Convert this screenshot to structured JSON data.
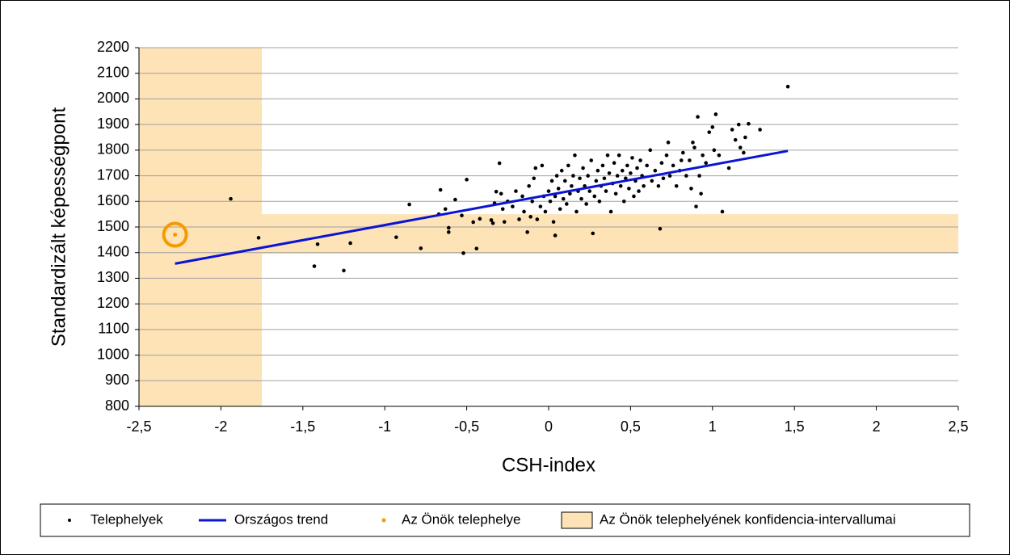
{
  "chart_data": {
    "type": "scatter",
    "xlabel": "CSH-index",
    "ylabel": "Standardizált képességpont",
    "xlim": [
      -2.5,
      2.5
    ],
    "xticks": [
      {
        "value": -2.5,
        "label": "-2,5"
      },
      -2,
      {
        "value": -1.5,
        "label": "-1,5"
      },
      -1,
      {
        "value": -0.5,
        "label": "-0,5"
      },
      0,
      {
        "value": 0.5,
        "label": "0,5"
      },
      1,
      {
        "value": 1.5,
        "label": "1,5"
      },
      2,
      {
        "value": 2.5,
        "label": "2,5"
      }
    ],
    "ylim": [
      800,
      2200
    ],
    "yticks": [
      800,
      900,
      1000,
      1100,
      1200,
      1300,
      1400,
      1500,
      1600,
      1700,
      1800,
      1900,
      2000,
      2100,
      2200
    ],
    "grid": true,
    "ci": {
      "name": "Az Önök telephelyének konfidencia-intervallumai",
      "color": "#fde3b6",
      "x": [
        -2.5,
        -1.75
      ],
      "y": [
        1395,
        1550
      ]
    },
    "series": [
      {
        "name": "Telephelyek",
        "type": "scatter",
        "color": "#000000",
        "x": [
          -1.94,
          -1.77,
          -1.43,
          -1.41,
          -1.25,
          -1.21,
          -0.93,
          -0.85,
          -0.78,
          -0.67,
          -0.66,
          -0.63,
          -0.61,
          -0.61,
          -0.57,
          -0.53,
          -0.52,
          -0.5,
          -0.46,
          -0.44,
          -0.42,
          -0.35,
          -0.34,
          -0.33,
          -0.32,
          -0.3,
          -0.29,
          -0.28,
          -0.27,
          1.46,
          0.68,
          0.04,
          0.27,
          1.06,
          0.91,
          1.02,
          1.22,
          1.29,
          1.16,
          0.73,
          0.88,
          0.81,
          -0.25,
          -0.22,
          -0.2,
          -0.18,
          -0.16,
          -0.15,
          -0.13,
          -0.12,
          -0.11,
          -0.1,
          -0.09,
          -0.08,
          -0.07,
          -0.05,
          -0.04,
          -0.03,
          -0.02,
          0,
          0.01,
          0.02,
          0.03,
          0.04,
          0.05,
          0.06,
          0.07,
          0.08,
          0.09,
          0.1,
          0.11,
          0.12,
          0.13,
          0.14,
          0.15,
          0.16,
          0.17,
          0.18,
          0.19,
          0.2,
          0.21,
          0.22,
          0.23,
          0.24,
          0.25,
          0.26,
          0.28,
          0.29,
          0.3,
          0.31,
          0.32,
          0.33,
          0.34,
          0.35,
          0.36,
          0.37,
          0.38,
          0.39,
          0.4,
          0.41,
          0.42,
          0.43,
          0.44,
          0.45,
          0.46,
          0.47,
          0.48,
          0.49,
          0.5,
          0.51,
          0.52,
          0.53,
          0.54,
          0.55,
          0.56,
          0.57,
          0.58,
          0.6,
          0.62,
          0.63,
          0.65,
          0.67,
          0.69,
          0.7,
          0.72,
          0.74,
          0.76,
          0.78,
          0.8,
          0.82,
          0.84,
          0.86,
          0.87,
          0.89,
          0.9,
          0.92,
          0.93,
          0.94,
          0.96,
          0.98,
          1.0,
          1.01,
          1.04,
          1.1,
          1.12,
          1.14,
          1.17,
          1.19,
          1.2
        ],
        "values": [
          1610,
          1458,
          1347,
          1433,
          1330,
          1437,
          1460,
          1588,
          1417,
          1550,
          1645,
          1570,
          1497,
          1480,
          1607,
          1545,
          1398,
          1685,
          1519,
          1416,
          1532,
          1527,
          1515,
          1593,
          1638,
          1749,
          1630,
          1570,
          1520,
          2048,
          1493,
          1467,
          1475,
          1560,
          1930,
          1940,
          1903,
          1880,
          1900,
          1830,
          1830,
          1760,
          1600,
          1580,
          1640,
          1530,
          1620,
          1560,
          1480,
          1660,
          1540,
          1600,
          1690,
          1730,
          1530,
          1580,
          1740,
          1620,
          1560,
          1640,
          1600,
          1680,
          1520,
          1620,
          1700,
          1650,
          1570,
          1720,
          1610,
          1680,
          1590,
          1740,
          1630,
          1660,
          1700,
          1780,
          1560,
          1640,
          1690,
          1610,
          1730,
          1660,
          1590,
          1700,
          1640,
          1760,
          1620,
          1680,
          1720,
          1600,
          1660,
          1740,
          1690,
          1640,
          1780,
          1710,
          1560,
          1670,
          1750,
          1630,
          1700,
          1780,
          1660,
          1720,
          1600,
          1690,
          1740,
          1650,
          1710,
          1770,
          1620,
          1680,
          1730,
          1640,
          1760,
          1700,
          1660,
          1740,
          1800,
          1680,
          1720,
          1660,
          1750,
          1690,
          1780,
          1700,
          1740,
          1660,
          1720,
          1790,
          1700,
          1760,
          1650,
          1810,
          1580,
          1700,
          1630,
          1780,
          1750,
          1870,
          1890,
          1800,
          1780,
          1730,
          1880,
          1840,
          1810,
          1790,
          1850
        ]
      },
      {
        "name": "Országos trend",
        "type": "line",
        "color": "#0a14d2",
        "x": [
          -2.28,
          1.46
        ],
        "values": [
          1357,
          1797
        ]
      },
      {
        "name": "Az Önök telephelye",
        "type": "own",
        "color": "#f59a00",
        "x": [
          -2.28
        ],
        "values": [
          1470
        ]
      }
    ]
  }
}
